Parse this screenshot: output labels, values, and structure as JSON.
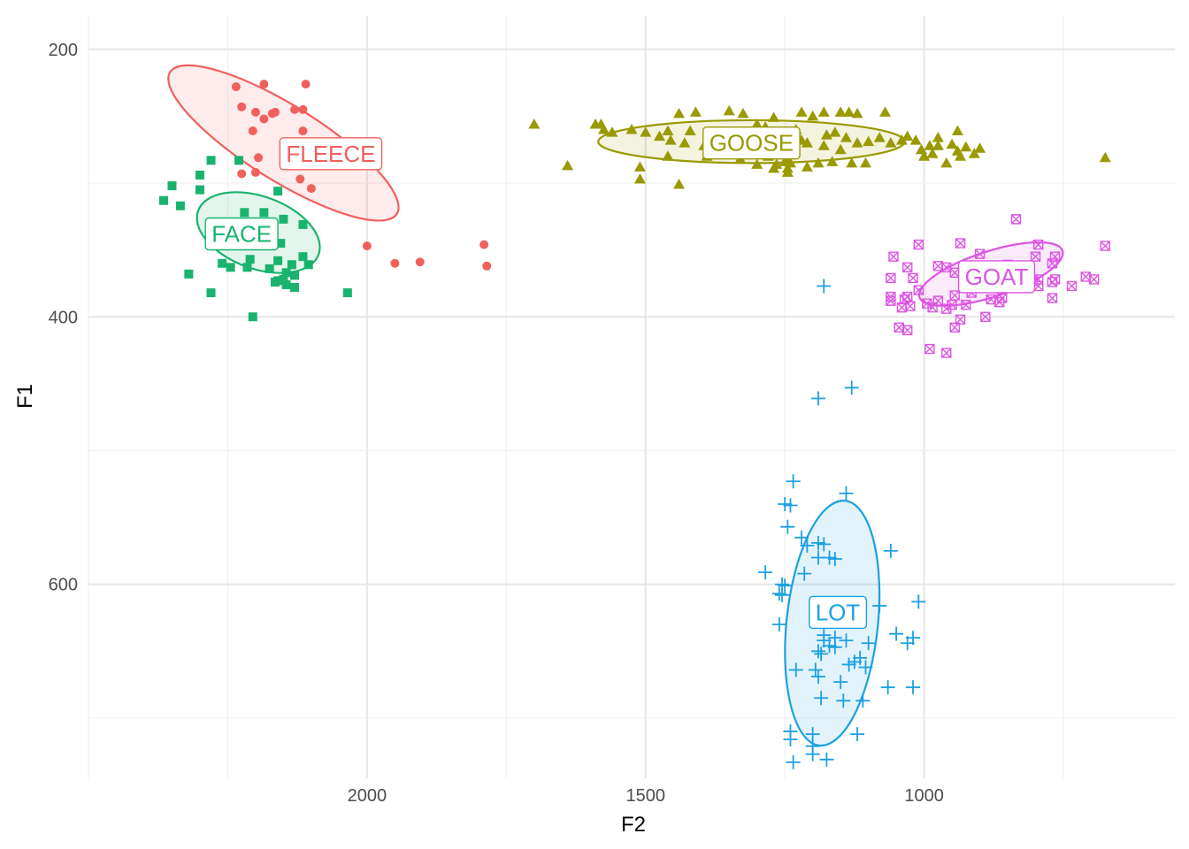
{
  "chart_data": {
    "type": "scatter",
    "xlabel": "F2",
    "ylabel": "F1",
    "x_reversed": true,
    "y_reversed": true,
    "xlim": [
      2500,
      550
    ],
    "ylim": [
      175,
      745
    ],
    "x_ticks": [
      2000,
      1500,
      1000
    ],
    "y_ticks": [
      200,
      400,
      600
    ],
    "grid": true,
    "legend": "none",
    "series": [
      {
        "name": "FLEECE",
        "color": "#F0605D",
        "shape": "circle",
        "ellipse": {
          "cx": 2150,
          "cy": 270,
          "rx": 240,
          "ry": 28,
          "angle_deg": 32
        },
        "label_pos": [
          2065,
          278
        ],
        "points": [
          [
            2235,
            228
          ],
          [
            2185,
            226
          ],
          [
            2110,
            226
          ],
          [
            2225,
            243
          ],
          [
            2165,
            247
          ],
          [
            2170,
            248
          ],
          [
            2130,
            245
          ],
          [
            2115,
            245
          ],
          [
            2200,
            247
          ],
          [
            2185,
            252
          ],
          [
            2205,
            261
          ],
          [
            2115,
            261
          ],
          [
            2195,
            281
          ],
          [
            2225,
            293
          ],
          [
            2200,
            292
          ],
          [
            2120,
            297
          ],
          [
            2100,
            304
          ],
          [
            2000,
            347
          ],
          [
            1950,
            360
          ],
          [
            1905,
            359
          ],
          [
            1790,
            346
          ],
          [
            1785,
            362
          ]
        ]
      },
      {
        "name": "GOOSE",
        "color": "#999900",
        "shape": "triangle",
        "ellipse": {
          "cx": 1310,
          "cy": 269,
          "rx": 275,
          "ry": 16,
          "angle_deg": 0
        },
        "label_pos": [
          1310,
          270
        ],
        "points": [
          [
            1700,
            256
          ],
          [
            1590,
            256
          ],
          [
            1580,
            256
          ],
          [
            1575,
            260
          ],
          [
            1440,
            248
          ],
          [
            1410,
            247
          ],
          [
            1350,
            246
          ],
          [
            1325,
            248
          ],
          [
            1300,
            256
          ],
          [
            1285,
            258
          ],
          [
            1270,
            251
          ],
          [
            1220,
            247
          ],
          [
            1200,
            250
          ],
          [
            1180,
            247
          ],
          [
            1150,
            247
          ],
          [
            1135,
            247
          ],
          [
            1120,
            248
          ],
          [
            1070,
            247
          ],
          [
            1460,
            261
          ],
          [
            1420,
            261
          ],
          [
            1380,
            264
          ],
          [
            1340,
            266
          ],
          [
            1290,
            268
          ],
          [
            1250,
            268
          ],
          [
            1220,
            268
          ],
          [
            1210,
            270
          ],
          [
            1180,
            272
          ],
          [
            1150,
            275
          ],
          [
            1120,
            270
          ],
          [
            1100,
            269
          ],
          [
            1040,
            268
          ],
          [
            990,
            272
          ],
          [
            975,
            272
          ],
          [
            950,
            271
          ],
          [
            940,
            261
          ],
          [
            925,
            273
          ],
          [
            900,
            274
          ],
          [
            1460,
            280
          ],
          [
            1390,
            280
          ],
          [
            1330,
            282
          ],
          [
            1300,
            286
          ],
          [
            1280,
            280
          ],
          [
            1250,
            284
          ],
          [
            1245,
            283
          ],
          [
            1240,
            285
          ],
          [
            1190,
            285
          ],
          [
            1130,
            285
          ],
          [
            1105,
            285
          ],
          [
            960,
            285
          ],
          [
            935,
            280
          ],
          [
            1005,
            275
          ],
          [
            1640,
            287
          ],
          [
            1510,
            288
          ],
          [
            1510,
            297
          ],
          [
            1440,
            301
          ],
          [
            1245,
            289
          ],
          [
            1245,
            292
          ],
          [
            1265,
            286
          ],
          [
            1270,
            289
          ],
          [
            1210,
            288
          ],
          [
            1165,
            284
          ],
          [
            1000,
            280
          ],
          [
            985,
            278
          ],
          [
            1060,
            270
          ],
          [
            1080,
            266
          ],
          [
            1500,
            262
          ],
          [
            1525,
            260
          ],
          [
            1560,
            262
          ],
          [
            1475,
            265
          ],
          [
            1455,
            268
          ],
          [
            1430,
            270
          ],
          [
            1395,
            272
          ],
          [
            1370,
            274
          ],
          [
            1345,
            268
          ],
          [
            1320,
            262
          ],
          [
            1255,
            262
          ],
          [
            1230,
            260
          ],
          [
            1175,
            264
          ],
          [
            1160,
            262
          ],
          [
            1140,
            266
          ],
          [
            1030,
            265
          ],
          [
            1015,
            268
          ],
          [
            975,
            266
          ],
          [
            940,
            276
          ],
          [
            910,
            278
          ],
          [
            675,
            281
          ]
        ]
      },
      {
        "name": "FACE",
        "color": "#19B36D",
        "shape": "square",
        "ellipse": {
          "cx": 2195,
          "cy": 337,
          "rx": 115,
          "ry": 27,
          "angle_deg": 20
        },
        "label_pos": [
          2225,
          338
        ],
        "points": [
          [
            2280,
            283
          ],
          [
            2230,
            283
          ],
          [
            2300,
            294
          ],
          [
            2350,
            302
          ],
          [
            2300,
            305
          ],
          [
            2160,
            306
          ],
          [
            2365,
            313
          ],
          [
            2335,
            317
          ],
          [
            2220,
            322
          ],
          [
            2185,
            322
          ],
          [
            2150,
            327
          ],
          [
            2115,
            331
          ],
          [
            2240,
            340
          ],
          [
            2190,
            345
          ],
          [
            2155,
            345
          ],
          [
            2115,
            355
          ],
          [
            2210,
            357
          ],
          [
            2160,
            358
          ],
          [
            2260,
            360
          ],
          [
            2135,
            361
          ],
          [
            2105,
            361
          ],
          [
            2245,
            363
          ],
          [
            2215,
            363
          ],
          [
            2175,
            364
          ],
          [
            2145,
            367
          ],
          [
            2320,
            368
          ],
          [
            2130,
            369
          ],
          [
            2150,
            372
          ],
          [
            2160,
            373
          ],
          [
            2165,
            374
          ],
          [
            2145,
            376
          ],
          [
            2130,
            378
          ],
          [
            2280,
            382
          ],
          [
            2035,
            382
          ],
          [
            2205,
            400
          ]
        ]
      },
      {
        "name": "GOAT",
        "color": "#DD54E4",
        "shape": "boxx",
        "ellipse": {
          "cx": 880,
          "cy": 368,
          "rx": 135,
          "ry": 17,
          "angle_deg": -18
        },
        "label_pos": [
          870,
          370
        ],
        "points": [
          [
            835,
            327
          ],
          [
            935,
            345
          ],
          [
            1010,
            346
          ],
          [
            795,
            346
          ],
          [
            675,
            347
          ],
          [
            900,
            353
          ],
          [
            1055,
            355
          ],
          [
            800,
            355
          ],
          [
            765,
            355
          ],
          [
            770,
            360
          ],
          [
            850,
            361
          ],
          [
            850,
            363
          ],
          [
            880,
            363
          ],
          [
            905,
            363
          ],
          [
            960,
            363
          ],
          [
            975,
            362
          ],
          [
            1030,
            363
          ],
          [
            870,
            365
          ],
          [
            900,
            366
          ],
          [
            945,
            367
          ],
          [
            925,
            368
          ],
          [
            1060,
            371
          ],
          [
            1020,
            371
          ],
          [
            840,
            371
          ],
          [
            795,
            372
          ],
          [
            805,
            373
          ],
          [
            765,
            372
          ],
          [
            770,
            374
          ],
          [
            710,
            370
          ],
          [
            695,
            372
          ],
          [
            735,
            377
          ],
          [
            795,
            377
          ],
          [
            860,
            378
          ],
          [
            835,
            378
          ],
          [
            1010,
            380
          ],
          [
            915,
            382
          ],
          [
            945,
            384
          ],
          [
            1060,
            385
          ],
          [
            1030,
            385
          ],
          [
            975,
            388
          ],
          [
            950,
            391
          ],
          [
            860,
            386
          ],
          [
            880,
            387
          ],
          [
            925,
            391
          ],
          [
            770,
            386
          ],
          [
            995,
            390
          ],
          [
            985,
            393
          ],
          [
            1025,
            392
          ],
          [
            1035,
            387
          ],
          [
            1060,
            388
          ],
          [
            1040,
            393
          ],
          [
            865,
            389
          ],
          [
            960,
            394
          ],
          [
            890,
            400
          ],
          [
            935,
            402
          ],
          [
            945,
            408
          ],
          [
            1045,
            408
          ],
          [
            1030,
            410
          ],
          [
            990,
            424
          ],
          [
            960,
            427
          ]
        ]
      },
      {
        "name": "LOT",
        "color": "#1BA0E2",
        "shape": "plus",
        "ellipse": {
          "cx": 1165,
          "cy": 629,
          "rx": 82,
          "ry": 92,
          "angle_deg": 6
        },
        "label_pos": [
          1155,
          621
        ],
        "points": [
          [
            1180,
            377
          ],
          [
            1130,
            453
          ],
          [
            1190,
            461
          ],
          [
            1235,
            523
          ],
          [
            1250,
            540
          ],
          [
            1240,
            541
          ],
          [
            1140,
            532
          ],
          [
            1245,
            557
          ],
          [
            1220,
            565
          ],
          [
            1190,
            569
          ],
          [
            1180,
            570
          ],
          [
            1210,
            571
          ],
          [
            1190,
            580
          ],
          [
            1170,
            580
          ],
          [
            1160,
            581
          ],
          [
            1060,
            575
          ],
          [
            1215,
            592
          ],
          [
            1285,
            591
          ],
          [
            1255,
            600
          ],
          [
            1250,
            601
          ],
          [
            1260,
            607
          ],
          [
            1145,
            615
          ],
          [
            1255,
            608
          ],
          [
            1080,
            616
          ],
          [
            1010,
            613
          ],
          [
            1260,
            630
          ],
          [
            1180,
            638
          ],
          [
            1180,
            642
          ],
          [
            1160,
            640
          ],
          [
            1140,
            642
          ],
          [
            1100,
            644
          ],
          [
            1170,
            646
          ],
          [
            1160,
            647
          ],
          [
            1050,
            637
          ],
          [
            1020,
            640
          ],
          [
            1030,
            644
          ],
          [
            1190,
            650
          ],
          [
            1185,
            652
          ],
          [
            1115,
            655
          ],
          [
            1135,
            660
          ],
          [
            1125,
            658
          ],
          [
            1105,
            662
          ],
          [
            1195,
            664
          ],
          [
            1230,
            664
          ],
          [
            1190,
            669
          ],
          [
            1150,
            673
          ],
          [
            1065,
            677
          ],
          [
            1020,
            677
          ],
          [
            1185,
            685
          ],
          [
            1145,
            687
          ],
          [
            1110,
            687
          ],
          [
            1240,
            710
          ],
          [
            1200,
            712
          ],
          [
            1120,
            712
          ],
          [
            1240,
            716
          ],
          [
            1200,
            721
          ],
          [
            1175,
            731
          ],
          [
            1235,
            733
          ],
          [
            1200,
            727
          ]
        ]
      }
    ]
  }
}
